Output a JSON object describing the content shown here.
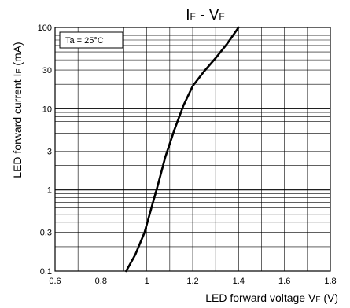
{
  "chart_data": {
    "type": "line",
    "title_main_1": "I",
    "title_sub_1": "F",
    "title_main_2": " - V",
    "title_sub_2": "F",
    "xlabel_main": "LED forward voltage V",
    "xlabel_sub": "F",
    "xlabel_unit": " (V)",
    "ylabel_main": "LED forward current I",
    "ylabel_sub": "F",
    "ylabel_unit": " (mA)",
    "annotation": "Ta = 25°C",
    "x_scale": "linear",
    "y_scale": "log",
    "xlim": [
      0.6,
      1.8
    ],
    "ylim": [
      0.1,
      100
    ],
    "grid": true,
    "x_ticks": [
      {
        "value": 0.6,
        "label": "0.6"
      },
      {
        "value": 0.8,
        "label": "0.8"
      },
      {
        "value": 1.0,
        "label": "1"
      },
      {
        "value": 1.2,
        "label": "1.2"
      },
      {
        "value": 1.4,
        "label": "1.4"
      },
      {
        "value": 1.6,
        "label": "1.6"
      },
      {
        "value": 1.8,
        "label": "1.8"
      }
    ],
    "y_ticks": [
      {
        "value": 100,
        "label": "100"
      },
      {
        "value": 30,
        "label": "30"
      },
      {
        "value": 10,
        "label": "10"
      },
      {
        "value": 3,
        "label": "3"
      },
      {
        "value": 1,
        "label": "1"
      },
      {
        "value": 0.3,
        "label": "0.3"
      },
      {
        "value": 0.1,
        "label": "0.1"
      }
    ],
    "series": [
      {
        "x": [
          0.91,
          0.95,
          0.99,
          1.02,
          1.05,
          1.08,
          1.12,
          1.16,
          1.2,
          1.25,
          1.3,
          1.35,
          1.4
        ],
        "y": [
          0.1,
          0.16,
          0.3,
          0.6,
          1.2,
          2.5,
          5.5,
          11,
          19,
          29,
          42,
          63,
          100
        ]
      }
    ],
    "line_color": "#000000"
  }
}
